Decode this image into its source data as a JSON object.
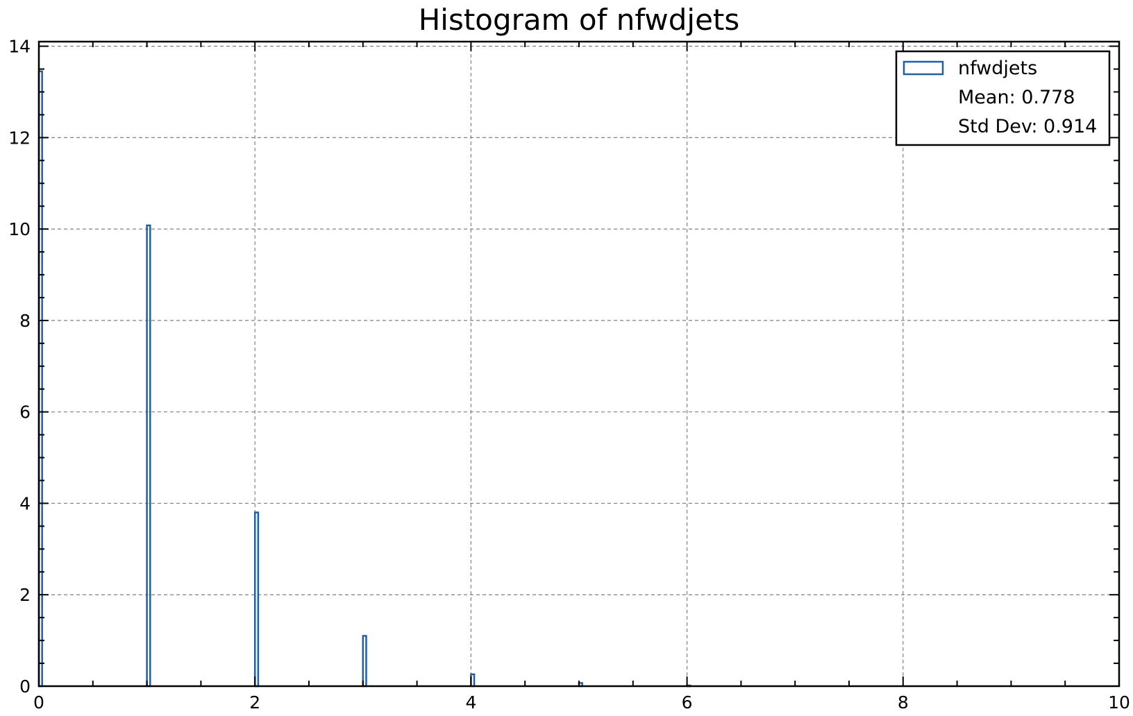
{
  "chart_data": {
    "type": "bar",
    "title": "Histogram of nfwdjets",
    "xlabel": "",
    "ylabel": "",
    "xlim": [
      0,
      10
    ],
    "ylim": [
      0,
      14.1
    ],
    "xticks": [
      0,
      2,
      4,
      6,
      8,
      10
    ],
    "yticks": [
      0,
      2,
      4,
      6,
      8,
      10,
      12,
      14
    ],
    "grid": true,
    "legend_position": "top-right",
    "series": [
      {
        "name": "nfwdjets",
        "color": "#1f5fa5",
        "bin_width": 0.03,
        "bins": [
          {
            "x": 0,
            "value": 13.45
          },
          {
            "x": 1,
            "value": 10.08
          },
          {
            "x": 2,
            "value": 3.8
          },
          {
            "x": 3,
            "value": 1.1
          },
          {
            "x": 4,
            "value": 0.26
          },
          {
            "x": 5,
            "value": 0.07
          },
          {
            "x": 6,
            "value": 0.015
          }
        ]
      }
    ],
    "legend": {
      "entries": [
        "nfwdjets"
      ],
      "stats": [
        "Mean: 0.778",
        "Std Dev: 0.914"
      ]
    }
  }
}
